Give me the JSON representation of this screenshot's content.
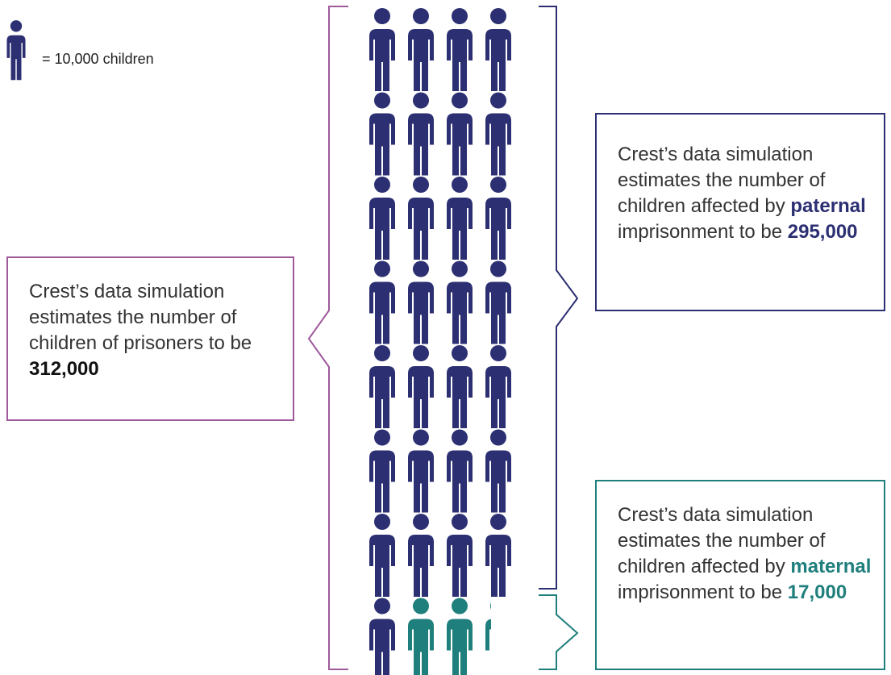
{
  "legend": {
    "label": "= 10,000 children"
  },
  "callouts": [
    {
      "text": "Crest’s data simulation estimates the number of children of prisoners to be",
      "figure": "312,000"
    },
    {
      "text_before": "Crest’s data simulation estimates the number of children affected by",
      "keyword": "paternal",
      "text_after": "imprisonment to be",
      "figure": "295,000"
    },
    {
      "text_before": "Crest’s data simulation estimates the number of children affected by",
      "keyword": "maternal",
      "text_after": "imprisonment to be",
      "figure": "17,000"
    }
  ]
}
